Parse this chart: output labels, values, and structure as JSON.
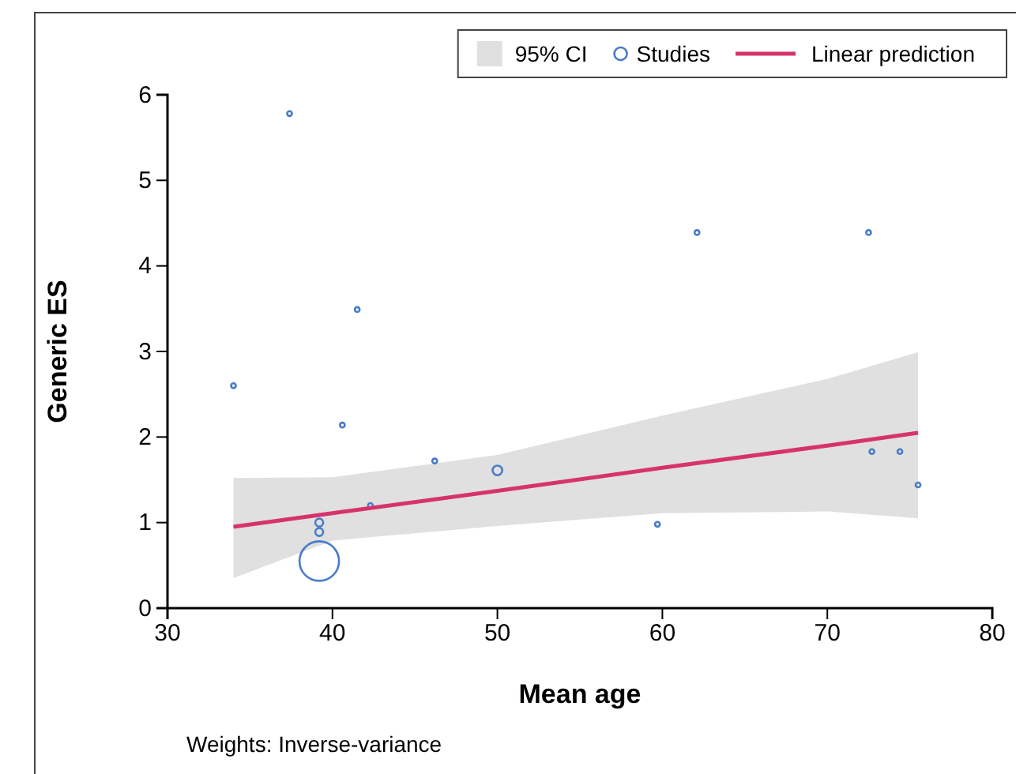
{
  "chart_data": {
    "type": "scatter",
    "xlabel": "Mean age",
    "ylabel": "Generic ES",
    "xlim": [
      30,
      80
    ],
    "ylim": [
      0,
      6
    ],
    "xticks": [
      30,
      40,
      50,
      60,
      70,
      80
    ],
    "yticks": [
      0,
      1,
      2,
      3,
      4,
      5,
      6
    ],
    "legend": "top right",
    "grid": false,
    "annotations": [
      "95% CI",
      "Weights: Inverse-variance"
    ],
    "series": [
      {
        "name": "Studies",
        "color": "#4a7cc9",
        "marker": "circle",
        "x": [
          34.0,
          37.4,
          39.2,
          39.2,
          39.2,
          40.6,
          41.5,
          42.3,
          46.2,
          50.0,
          59.7,
          62.1,
          72.5,
          72.7,
          74.4,
          75.5
        ],
        "values": [
          2.6,
          5.78,
          1.0,
          0.89,
          0.55,
          2.14,
          3.49,
          1.2,
          1.72,
          1.61,
          0.98,
          4.39,
          4.39,
          1.83,
          1.83,
          1.44
        ],
        "sizes": [
          0.015,
          0.015,
          0.04,
          0.04,
          1,
          0.015,
          0.015,
          0.015,
          0.015,
          0.06,
          0.015,
          0.015,
          0.015,
          0.015,
          0.015,
          0.015
        ]
      },
      {
        "type": "line",
        "name": "Linear prediction",
        "color": "#d6336c",
        "marker": "none",
        "x": [
          34,
          40,
          50,
          60,
          70,
          75.5
        ],
        "values": [
          0.95,
          1.11,
          1.37,
          1.64,
          1.9,
          2.05
        ],
        "lower": [
          0.35,
          0.79,
          0.96,
          1.11,
          1.13,
          1.05
        ],
        "upper": [
          1.52,
          1.53,
          1.79,
          2.25,
          2.68,
          2.99
        ]
      }
    ]
  }
}
